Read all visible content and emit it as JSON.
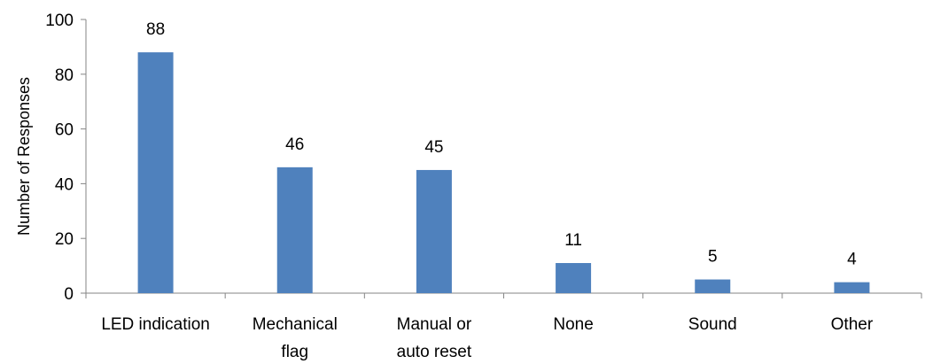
{
  "chart_data": {
    "type": "bar",
    "title": "",
    "xlabel": "",
    "ylabel": "Number of Responses",
    "ylim": [
      0,
      100
    ],
    "yticks": [
      0,
      20,
      40,
      60,
      80,
      100
    ],
    "ytick_labels": [
      "0",
      "20",
      "40",
      "60",
      "80",
      "100"
    ],
    "categories": [
      [
        "LED indication"
      ],
      [
        "Mechanical",
        "flag"
      ],
      [
        "Manual or",
        "auto reset"
      ],
      [
        "None"
      ],
      [
        "Sound"
      ],
      [
        "Other"
      ]
    ],
    "values": [
      88,
      46,
      45,
      11,
      5,
      4
    ],
    "data_labels": [
      "88",
      "46",
      "45",
      "11",
      "5",
      "4"
    ],
    "bar_color": "#4F81BD",
    "grid": false,
    "legend": "none"
  }
}
